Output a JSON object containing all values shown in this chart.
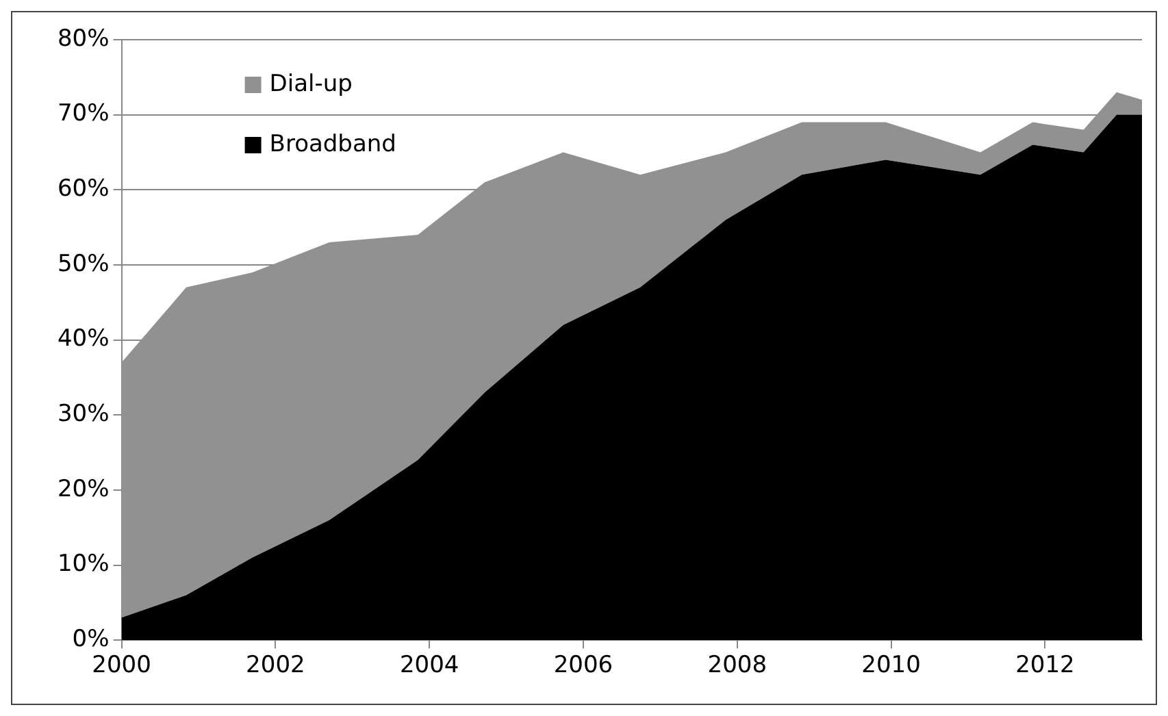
{
  "chart_data": {
    "type": "area",
    "stacked": true,
    "x": [
      2000,
      2000.84,
      2001.7,
      2002.7,
      2003.85,
      2004.72,
      2005.74,
      2006.74,
      2007.85,
      2008.84,
      2009.93,
      2011.16,
      2011.84,
      2012.5,
      2012.93,
      2013.26
    ],
    "series": [
      {
        "name": "Broadband",
        "color": "#000000",
        "values": [
          3,
          6,
          11,
          16,
          24,
          33,
          42,
          47,
          56,
          62,
          64,
          62,
          66,
          65,
          70,
          70
        ]
      },
      {
        "name": "Dial-up",
        "color": "#919191",
        "values": [
          34,
          41,
          38,
          37,
          30,
          28,
          23,
          15,
          9,
          7,
          5,
          3,
          3,
          3,
          3,
          2
        ]
      }
    ],
    "xlim": [
      2000,
      2013.26
    ],
    "xticks": [
      2000,
      2002,
      2004,
      2006,
      2008,
      2010,
      2012
    ],
    "ylim": [
      0,
      80
    ],
    "yticks": [
      {
        "value": 0,
        "label": "0%"
      },
      {
        "value": 10,
        "label": "10%"
      },
      {
        "value": 20,
        "label": "20%"
      },
      {
        "value": 30,
        "label": "30%"
      },
      {
        "value": 40,
        "label": "40%"
      },
      {
        "value": 50,
        "label": "50%"
      },
      {
        "value": 60,
        "label": "60%"
      },
      {
        "value": 70,
        "label": "70%"
      },
      {
        "value": 80,
        "label": "80%"
      }
    ],
    "grid": "y",
    "legend": "top left"
  }
}
